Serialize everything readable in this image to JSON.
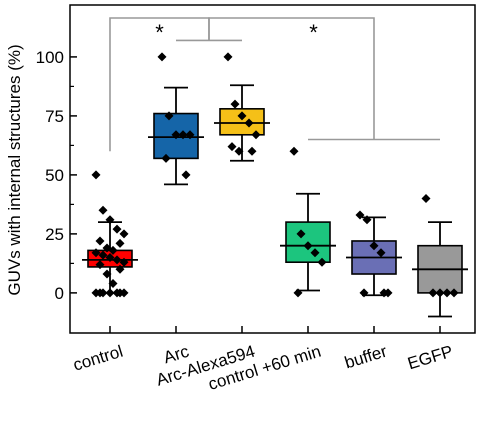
{
  "chart_data": {
    "type": "box",
    "ylabel": "GUVs with internal structures (%)",
    "ylim": [
      -17,
      122
    ],
    "yticks": [
      0,
      25,
      50,
      75,
      100
    ],
    "categories": [
      "control",
      "Arc",
      "Arc-Alexa594",
      "control +60 min",
      "buffer",
      "EGFP"
    ],
    "series": [
      {
        "category": "control",
        "color": "#ff0000",
        "q1": 11,
        "median": 14,
        "q3": 18,
        "mean": 15,
        "whisker_low": 0,
        "whisker_high": 30,
        "points": [
          50,
          35,
          31,
          27,
          25,
          22,
          21,
          19,
          18,
          17,
          16,
          15,
          14,
          13,
          12,
          10,
          8,
          4,
          0,
          0,
          0,
          0,
          0,
          0,
          0
        ]
      },
      {
        "category": "Arc",
        "color": "#1565a8",
        "q1": 57,
        "median": 66,
        "q3": 76,
        "mean": 66,
        "whisker_low": 46,
        "whisker_high": 87,
        "points": [
          100,
          75,
          67,
          67,
          67,
          57,
          50
        ]
      },
      {
        "category": "Arc-Alexa594",
        "color": "#f5c018",
        "q1": 67,
        "median": 72,
        "q3": 78,
        "mean": 72,
        "whisker_low": 56,
        "whisker_high": 88,
        "points": [
          100,
          80,
          75,
          72,
          67,
          62,
          60,
          60
        ]
      },
      {
        "category": "control +60 min",
        "color": "#1cc57e",
        "q1": 13,
        "median": 20,
        "q3": 30,
        "mean": 22,
        "whisker_low": 1,
        "whisker_high": 42,
        "points": [
          60,
          25,
          20,
          17,
          13,
          0
        ]
      },
      {
        "category": "buffer",
        "color": "#6a6fb5",
        "q1": 8,
        "median": 15,
        "q3": 22,
        "mean": 15,
        "whisker_low": -1,
        "whisker_high": 32,
        "points": [
          33,
          31,
          20,
          17,
          0,
          0,
          0
        ]
      },
      {
        "category": "EGFP",
        "color": "#999999",
        "q1": 0,
        "median": 10,
        "q3": 20,
        "mean": 10,
        "whisker_low": -10,
        "whisker_high": 30,
        "points": [
          40,
          0,
          0,
          0,
          0
        ]
      }
    ],
    "annotations": [
      {
        "text": "*",
        "left": [
          "control"
        ],
        "right": [
          "Arc",
          "Arc-Alexa594"
        ]
      },
      {
        "text": "*",
        "left": [
          "Arc",
          "Arc-Alexa594"
        ],
        "right": [
          "control +60 min",
          "buffer",
          "EGFP"
        ]
      }
    ]
  }
}
